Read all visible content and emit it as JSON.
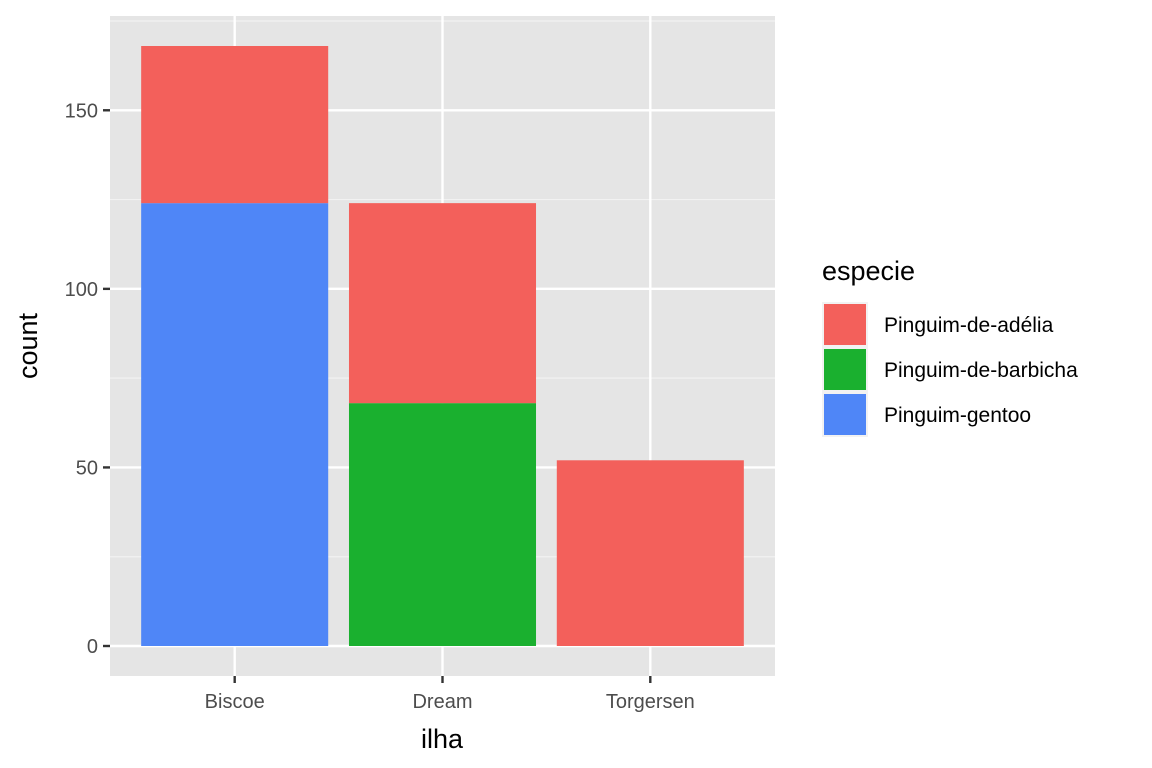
{
  "chart_data": {
    "type": "bar",
    "stacked": true,
    "categories": [
      "Biscoe",
      "Dream",
      "Torgersen"
    ],
    "series": [
      {
        "name": "Pinguim-gentoo",
        "color": "#4f86f7",
        "values": [
          124,
          0,
          0
        ]
      },
      {
        "name": "Pinguim-de-barbicha",
        "color": "#1ab02f",
        "values": [
          0,
          68,
          0
        ]
      },
      {
        "name": "Pinguim-de-adélia",
        "color": "#f3605b",
        "values": [
          44,
          56,
          52
        ]
      }
    ],
    "xlabel": "ilha",
    "ylabel": "count",
    "yticks": [
      0,
      50,
      100,
      150
    ],
    "ylim": [
      -8.4,
      176.4
    ],
    "legend": {
      "title": "especie",
      "position": "right",
      "entries": [
        "Pinguim-de-adélia",
        "Pinguim-de-barbicha",
        "Pinguim-gentoo"
      ]
    },
    "panel_background": "#e5e5e5",
    "grid": true
  }
}
